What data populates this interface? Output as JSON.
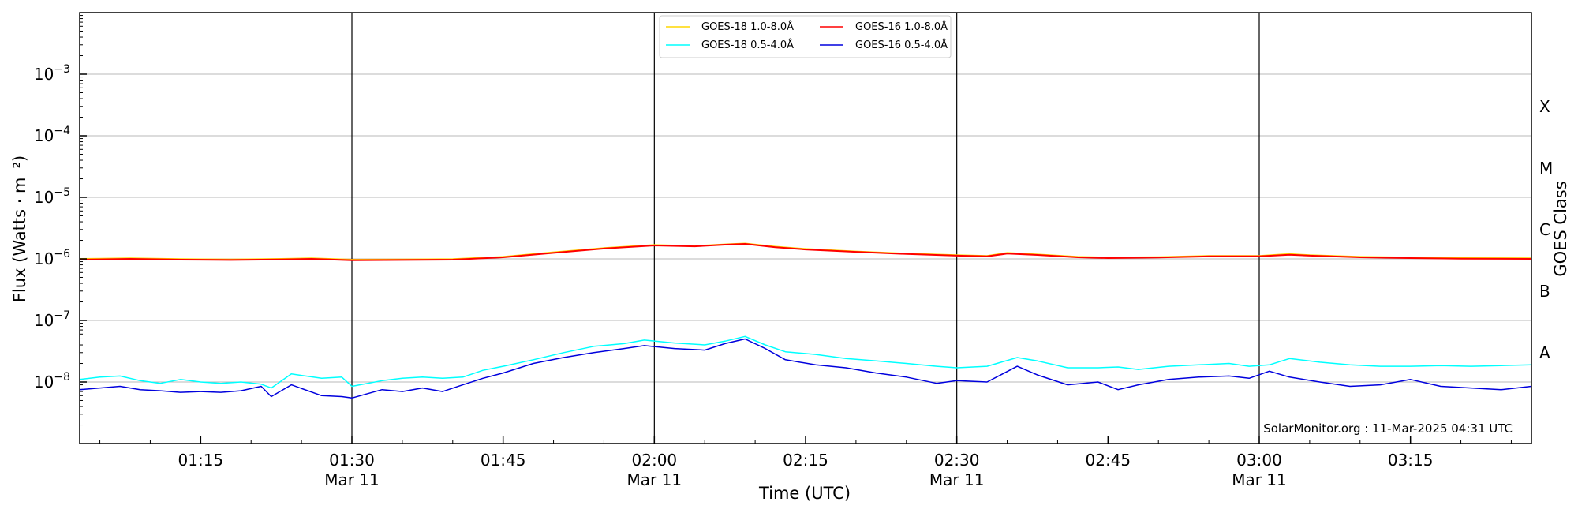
{
  "chart_data": {
    "type": "line",
    "ylabel": "Flux (Watts · m⁻²)",
    "xlabel": "Time (UTC)",
    "y2label": "GOES Class",
    "credit": "SolarMonitor.org : 11-Mar-2025 04:31 UTC",
    "yscale": "log",
    "ylim": [
      1e-09,
      0.01
    ],
    "xlim": [
      "01:03",
      "03:27"
    ],
    "grid": true,
    "legend_position": "top-center",
    "y_ticks": [
      {
        "exp": -8,
        "base": "10",
        "power": "−8"
      },
      {
        "exp": -7,
        "base": "10",
        "power": "−7"
      },
      {
        "exp": -6,
        "base": "10",
        "power": "−6"
      },
      {
        "exp": -5,
        "base": "10",
        "power": "−5"
      },
      {
        "exp": -4,
        "base": "10",
        "power": "−4"
      },
      {
        "exp": -3,
        "base": "10",
        "power": "−3"
      }
    ],
    "x_ticks": [
      {
        "time": "01:15",
        "label": "01:15",
        "sublabel": ""
      },
      {
        "time": "01:30",
        "label": "01:30",
        "sublabel": "Mar 11"
      },
      {
        "time": "01:45",
        "label": "01:45",
        "sublabel": ""
      },
      {
        "time": "02:00",
        "label": "02:00",
        "sublabel": "Mar 11"
      },
      {
        "time": "02:15",
        "label": "02:15",
        "sublabel": ""
      },
      {
        "time": "02:30",
        "label": "02:30",
        "sublabel": "Mar 11"
      },
      {
        "time": "02:45",
        "label": "02:45",
        "sublabel": ""
      },
      {
        "time": "03:00",
        "label": "03:00",
        "sublabel": "Mar 11"
      },
      {
        "time": "03:15",
        "label": "03:15",
        "sublabel": ""
      }
    ],
    "vertical_lines": [
      "01:30",
      "02:00",
      "02:30",
      "03:00"
    ],
    "goes_classes": [
      {
        "label": "A",
        "flux": 3e-08
      },
      {
        "label": "B",
        "flux": 3e-07
      },
      {
        "label": "C",
        "flux": 3e-06
      },
      {
        "label": "M",
        "flux": 3e-05
      },
      {
        "label": "X",
        "flux": 0.0003
      }
    ],
    "series": [
      {
        "name": "GOES-18 1.0-8.0Å",
        "color": "#ffd700",
        "x": [
          "01:03",
          "01:08",
          "01:13",
          "01:18",
          "01:23",
          "01:26",
          "01:30",
          "01:35",
          "01:40",
          "01:45",
          "01:50",
          "01:55",
          "02:00",
          "02:04",
          "02:07",
          "02:09",
          "02:12",
          "02:15",
          "02:20",
          "02:25",
          "02:30",
          "02:33",
          "02:35",
          "02:38",
          "02:42",
          "02:45",
          "02:50",
          "02:55",
          "03:00",
          "03:03",
          "03:05",
          "03:10",
          "03:15",
          "03:20",
          "03:27"
        ],
        "y": [
          1e-06,
          1.02e-06,
          9.9e-07,
          9.8e-07,
          1e-06,
          1.02e-06,
          9.7e-07,
          9.8e-07,
          9.9e-07,
          1.08e-06,
          1.28e-06,
          1.5e-06,
          1.68e-06,
          1.62e-06,
          1.72e-06,
          1.78e-06,
          1.58e-06,
          1.45e-06,
          1.32e-06,
          1.22e-06,
          1.15e-06,
          1.12e-06,
          1.25e-06,
          1.18e-06,
          1.08e-06,
          1.05e-06,
          1.07e-06,
          1.12e-06,
          1.12e-06,
          1.2e-06,
          1.15e-06,
          1.08e-06,
          1.05e-06,
          1.03e-06,
          1.02e-06
        ]
      },
      {
        "name": "GOES-16 1.0-8.0Å",
        "color": "#ff0000",
        "x": [
          "01:03",
          "01:08",
          "01:13",
          "01:18",
          "01:23",
          "01:26",
          "01:30",
          "01:35",
          "01:40",
          "01:45",
          "01:50",
          "01:55",
          "02:00",
          "02:04",
          "02:07",
          "02:09",
          "02:12",
          "02:15",
          "02:20",
          "02:25",
          "02:30",
          "02:33",
          "02:35",
          "02:38",
          "02:42",
          "02:45",
          "02:50",
          "02:55",
          "03:00",
          "03:03",
          "03:05",
          "03:10",
          "03:15",
          "03:20",
          "03:27"
        ],
        "y": [
          9.7e-07,
          1e-06,
          9.7e-07,
          9.6e-07,
          9.8e-07,
          1e-06,
          9.5e-07,
          9.6e-07,
          9.7e-07,
          1.06e-06,
          1.25e-06,
          1.47e-06,
          1.65e-06,
          1.6e-06,
          1.7e-06,
          1.75e-06,
          1.55e-06,
          1.42e-06,
          1.3e-06,
          1.2e-06,
          1.13e-06,
          1.1e-06,
          1.22e-06,
          1.16e-06,
          1.06e-06,
          1.03e-06,
          1.05e-06,
          1.1e-06,
          1.1e-06,
          1.17e-06,
          1.13e-06,
          1.06e-06,
          1.03e-06,
          1.01e-06,
          1e-06
        ]
      },
      {
        "name": "GOES-18 0.5-4.0Å",
        "color": "#00ffff",
        "x": [
          "01:03",
          "01:05",
          "01:07",
          "01:09",
          "01:11",
          "01:13",
          "01:15",
          "01:17",
          "01:19",
          "01:21",
          "01:22",
          "01:24",
          "01:27",
          "01:29",
          "01:30",
          "01:33",
          "01:35",
          "01:37",
          "01:39",
          "01:41",
          "01:43",
          "01:45",
          "01:48",
          "01:51",
          "01:54",
          "01:57",
          "01:59",
          "02:02",
          "02:05",
          "02:07",
          "02:09",
          "02:11",
          "02:13",
          "02:16",
          "02:19",
          "02:22",
          "02:25",
          "02:28",
          "02:30",
          "02:33",
          "02:36",
          "02:38",
          "02:41",
          "02:44",
          "02:46",
          "02:48",
          "02:51",
          "02:54",
          "02:57",
          "02:59",
          "03:01",
          "03:03",
          "03:06",
          "03:09",
          "03:12",
          "03:15",
          "03:18",
          "03:21",
          "03:24",
          "03:27"
        ],
        "y": [
          1.1e-08,
          1.2e-08,
          1.25e-08,
          1.05e-08,
          9.5e-09,
          1.1e-08,
          1e-08,
          9.5e-09,
          1e-08,
          9.2e-09,
          8e-09,
          1.35e-08,
          1.15e-08,
          1.2e-08,
          8.5e-09,
          1.05e-08,
          1.15e-08,
          1.2e-08,
          1.15e-08,
          1.2e-08,
          1.55e-08,
          1.8e-08,
          2.3e-08,
          3e-08,
          3.8e-08,
          4.2e-08,
          4.8e-08,
          4.3e-08,
          4e-08,
          4.6e-08,
          5.5e-08,
          4e-08,
          3.1e-08,
          2.8e-08,
          2.4e-08,
          2.2e-08,
          2e-08,
          1.8e-08,
          1.7e-08,
          1.8e-08,
          2.5e-08,
          2.2e-08,
          1.7e-08,
          1.7e-08,
          1.75e-08,
          1.6e-08,
          1.8e-08,
          1.9e-08,
          2e-08,
          1.8e-08,
          1.9e-08,
          2.4e-08,
          2.1e-08,
          1.9e-08,
          1.8e-08,
          1.8e-08,
          1.85e-08,
          1.8e-08,
          1.85e-08,
          1.9e-08
        ]
      },
      {
        "name": "GOES-16 0.5-4.0Å",
        "color": "#0000dd",
        "x": [
          "01:03",
          "01:05",
          "01:07",
          "01:09",
          "01:11",
          "01:13",
          "01:15",
          "01:17",
          "01:19",
          "01:21",
          "01:22",
          "01:24",
          "01:27",
          "01:29",
          "01:30",
          "01:33",
          "01:35",
          "01:37",
          "01:39",
          "01:41",
          "01:43",
          "01:45",
          "01:48",
          "01:51",
          "01:54",
          "01:57",
          "01:59",
          "02:02",
          "02:05",
          "02:07",
          "02:09",
          "02:11",
          "02:13",
          "02:16",
          "02:19",
          "02:22",
          "02:25",
          "02:28",
          "02:30",
          "02:33",
          "02:36",
          "02:38",
          "02:41",
          "02:44",
          "02:46",
          "02:48",
          "02:51",
          "02:54",
          "02:57",
          "02:59",
          "03:01",
          "03:03",
          "03:06",
          "03:09",
          "03:12",
          "03:15",
          "03:18",
          "03:21",
          "03:24",
          "03:27"
        ],
        "y": [
          7.5e-09,
          8e-09,
          8.5e-09,
          7.5e-09,
          7.2e-09,
          6.8e-09,
          7e-09,
          6.8e-09,
          7.2e-09,
          8.5e-09,
          5.8e-09,
          9e-09,
          6e-09,
          5.8e-09,
          5.5e-09,
          7.5e-09,
          7e-09,
          8e-09,
          7e-09,
          9e-09,
          1.15e-08,
          1.4e-08,
          2e-08,
          2.5e-08,
          3e-08,
          3.5e-08,
          3.9e-08,
          3.5e-08,
          3.3e-08,
          4.2e-08,
          5e-08,
          3.5e-08,
          2.3e-08,
          1.9e-08,
          1.7e-08,
          1.4e-08,
          1.2e-08,
          9.5e-09,
          1.05e-08,
          1e-08,
          1.8e-08,
          1.3e-08,
          9e-09,
          1e-08,
          7.5e-09,
          9e-09,
          1.1e-08,
          1.2e-08,
          1.25e-08,
          1.15e-08,
          1.5e-08,
          1.2e-08,
          1e-08,
          8.5e-09,
          9e-09,
          1.1e-08,
          8.5e-09,
          8e-09,
          7.5e-09,
          8.5e-09
        ]
      }
    ],
    "legend_order": [
      0,
      2,
      1,
      3
    ]
  }
}
